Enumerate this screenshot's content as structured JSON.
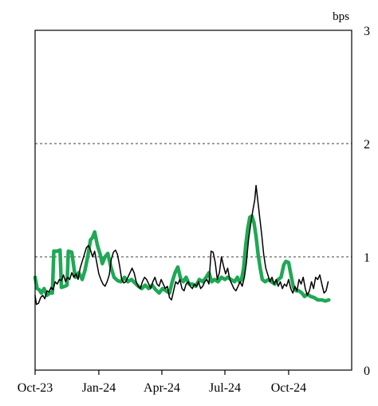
{
  "chart_data": {
    "type": "line",
    "title": "",
    "xlabel": "",
    "ylabel": "bps",
    "ylim": [
      0,
      3
    ],
    "xlim": [
      "2023-10-01",
      "2024-12-31"
    ],
    "x_ticks": [
      "Oct-23",
      "Jan-24",
      "Apr-24",
      "Jul-24",
      "Oct-24"
    ],
    "y_ticks": [
      "0",
      "1",
      "2",
      "3"
    ],
    "grid": "dashed horizontal lines at 1 and 2",
    "legend": "none",
    "series": [
      {
        "color": "#1fa855",
        "values": [
          [
            "2023-10-01",
            0.82
          ],
          [
            "2023-10-04",
            0.72
          ],
          [
            "2023-10-07",
            0.71
          ],
          [
            "2023-10-10",
            0.68
          ],
          [
            "2023-10-14",
            0.72
          ],
          [
            "2023-10-18",
            0.66
          ],
          [
            "2023-10-22",
            0.68
          ],
          [
            "2023-10-26",
            0.68
          ],
          [
            "2023-10-28",
            1.05
          ],
          [
            "2023-11-02",
            1.05
          ],
          [
            "2023-11-06",
            1.06
          ],
          [
            "2023-11-08",
            0.73
          ],
          [
            "2023-11-13",
            0.74
          ],
          [
            "2023-11-16",
            0.75
          ],
          [
            "2023-11-18",
            1.05
          ],
          [
            "2023-11-23",
            1.04
          ],
          [
            "2023-11-28",
            0.82
          ],
          [
            "2023-12-03",
            0.86
          ],
          [
            "2023-12-08",
            0.8
          ],
          [
            "2023-12-12",
            0.88
          ],
          [
            "2023-12-16",
            1.0
          ],
          [
            "2023-12-20",
            1.15
          ],
          [
            "2023-12-23",
            1.17
          ],
          [
            "2023-12-26",
            1.22
          ],
          [
            "2023-12-30",
            1.1
          ],
          [
            "2024-01-03",
            1.02
          ],
          [
            "2024-01-06",
            0.94
          ],
          [
            "2024-01-10",
            1.0
          ],
          [
            "2024-01-14",
            1.03
          ],
          [
            "2024-01-18",
            0.92
          ],
          [
            "2024-01-23",
            0.82
          ],
          [
            "2024-01-28",
            0.79
          ],
          [
            "2024-02-02",
            0.78
          ],
          [
            "2024-02-07",
            0.82
          ],
          [
            "2024-02-12",
            0.78
          ],
          [
            "2024-02-17",
            0.8
          ],
          [
            "2024-02-22",
            0.77
          ],
          [
            "2024-02-27",
            0.74
          ],
          [
            "2024-03-03",
            0.72
          ],
          [
            "2024-03-08",
            0.75
          ],
          [
            "2024-03-13",
            0.72
          ],
          [
            "2024-03-18",
            0.75
          ],
          [
            "2024-03-23",
            0.71
          ],
          [
            "2024-03-28",
            0.68
          ],
          [
            "2024-04-02",
            0.72
          ],
          [
            "2024-04-07",
            0.7
          ],
          [
            "2024-04-12",
            0.68
          ],
          [
            "2024-04-16",
            0.78
          ],
          [
            "2024-04-20",
            0.86
          ],
          [
            "2024-04-24",
            0.91
          ],
          [
            "2024-04-28",
            0.81
          ],
          [
            "2024-05-02",
            0.78
          ],
          [
            "2024-05-06",
            0.82
          ],
          [
            "2024-05-10",
            0.76
          ],
          [
            "2024-05-15",
            0.76
          ],
          [
            "2024-05-20",
            0.74
          ],
          [
            "2024-05-25",
            0.8
          ],
          [
            "2024-05-30",
            0.78
          ],
          [
            "2024-06-04",
            0.82
          ],
          [
            "2024-06-08",
            0.86
          ],
          [
            "2024-06-12",
            0.78
          ],
          [
            "2024-06-16",
            0.8
          ],
          [
            "2024-06-21",
            0.78
          ],
          [
            "2024-06-26",
            0.82
          ],
          [
            "2024-07-01",
            0.8
          ],
          [
            "2024-07-05",
            0.82
          ],
          [
            "2024-07-10",
            0.8
          ],
          [
            "2024-07-15",
            0.78
          ],
          [
            "2024-07-19",
            0.82
          ],
          [
            "2024-07-22",
            0.78
          ],
          [
            "2024-07-25",
            0.8
          ],
          [
            "2024-07-28",
            0.9
          ],
          [
            "2024-07-31",
            1.1
          ],
          [
            "2024-08-03",
            1.25
          ],
          [
            "2024-08-06",
            1.35
          ],
          [
            "2024-08-09",
            1.36
          ],
          [
            "2024-08-12",
            1.3
          ],
          [
            "2024-08-15",
            1.18
          ],
          [
            "2024-08-18",
            1.02
          ],
          [
            "2024-08-21",
            0.9
          ],
          [
            "2024-08-24",
            0.8
          ],
          [
            "2024-08-28",
            0.78
          ],
          [
            "2024-09-02",
            0.8
          ],
          [
            "2024-09-06",
            0.78
          ],
          [
            "2024-09-11",
            0.76
          ],
          [
            "2024-09-16",
            0.8
          ],
          [
            "2024-09-20",
            0.82
          ],
          [
            "2024-09-24",
            0.93
          ],
          [
            "2024-09-27",
            0.96
          ],
          [
            "2024-10-01",
            0.95
          ],
          [
            "2024-10-04",
            0.85
          ],
          [
            "2024-10-08",
            0.73
          ],
          [
            "2024-10-12",
            0.7
          ],
          [
            "2024-10-16",
            0.7
          ],
          [
            "2024-10-20",
            0.68
          ],
          [
            "2024-10-24",
            0.65
          ],
          [
            "2024-10-28",
            0.67
          ],
          [
            "2024-11-02",
            0.65
          ],
          [
            "2024-11-07",
            0.64
          ],
          [
            "2024-11-12",
            0.62
          ],
          [
            "2024-11-18",
            0.62
          ],
          [
            "2024-11-23",
            0.61
          ],
          [
            "2024-11-28",
            0.62
          ]
        ]
      },
      {
        "color": "#000000",
        "values": [
          [
            "2023-10-01",
            0.66
          ],
          [
            "2023-10-03",
            0.58
          ],
          [
            "2023-10-06",
            0.59
          ],
          [
            "2023-10-09",
            0.64
          ],
          [
            "2023-10-12",
            0.66
          ],
          [
            "2023-10-15",
            0.63
          ],
          [
            "2023-10-18",
            0.7
          ],
          [
            "2023-10-21",
            0.69
          ],
          [
            "2023-10-24",
            0.73
          ],
          [
            "2023-10-27",
            0.71
          ],
          [
            "2023-10-30",
            0.78
          ],
          [
            "2023-11-02",
            0.76
          ],
          [
            "2023-11-05",
            0.8
          ],
          [
            "2023-11-08",
            0.79
          ],
          [
            "2023-11-11",
            0.84
          ],
          [
            "2023-11-14",
            0.78
          ],
          [
            "2023-11-17",
            0.82
          ],
          [
            "2023-11-20",
            0.8
          ],
          [
            "2023-11-23",
            0.86
          ],
          [
            "2023-11-26",
            0.82
          ],
          [
            "2023-11-29",
            0.85
          ],
          [
            "2023-12-02",
            0.8
          ],
          [
            "2023-12-05",
            0.9
          ],
          [
            "2023-12-08",
            0.96
          ],
          [
            "2023-12-11",
            1.02
          ],
          [
            "2023-12-14",
            1.08
          ],
          [
            "2023-12-17",
            1.1
          ],
          [
            "2023-12-20",
            1.06
          ],
          [
            "2023-12-23",
            1.0
          ],
          [
            "2023-12-26",
            1.05
          ],
          [
            "2023-12-29",
            0.95
          ],
          [
            "2024-01-01",
            0.85
          ],
          [
            "2024-01-04",
            0.8
          ],
          [
            "2024-01-07",
            0.76
          ],
          [
            "2024-01-10",
            0.74
          ],
          [
            "2024-01-13",
            0.78
          ],
          [
            "2024-01-16",
            0.84
          ],
          [
            "2024-01-19",
            0.98
          ],
          [
            "2024-01-22",
            1.04
          ],
          [
            "2024-01-25",
            1.06
          ],
          [
            "2024-01-28",
            1.02
          ],
          [
            "2024-01-31",
            0.92
          ],
          [
            "2024-02-03",
            0.8
          ],
          [
            "2024-02-06",
            0.77
          ],
          [
            "2024-02-09",
            0.78
          ],
          [
            "2024-02-12",
            0.82
          ],
          [
            "2024-02-15",
            0.86
          ],
          [
            "2024-02-18",
            0.9
          ],
          [
            "2024-02-21",
            0.86
          ],
          [
            "2024-02-24",
            0.78
          ],
          [
            "2024-02-27",
            0.74
          ],
          [
            "2024-03-01",
            0.72
          ],
          [
            "2024-03-04",
            0.78
          ],
          [
            "2024-03-07",
            0.82
          ],
          [
            "2024-03-10",
            0.8
          ],
          [
            "2024-03-13",
            0.76
          ],
          [
            "2024-03-16",
            0.72
          ],
          [
            "2024-03-19",
            0.78
          ],
          [
            "2024-03-22",
            0.82
          ],
          [
            "2024-03-25",
            0.76
          ],
          [
            "2024-03-28",
            0.74
          ],
          [
            "2024-03-31",
            0.8
          ],
          [
            "2024-04-03",
            0.76
          ],
          [
            "2024-04-06",
            0.72
          ],
          [
            "2024-04-09",
            0.74
          ],
          [
            "2024-04-12",
            0.64
          ],
          [
            "2024-04-15",
            0.62
          ],
          [
            "2024-04-18",
            0.7
          ],
          [
            "2024-04-21",
            0.78
          ],
          [
            "2024-04-24",
            0.76
          ],
          [
            "2024-04-27",
            0.8
          ],
          [
            "2024-04-30",
            0.72
          ],
          [
            "2024-05-03",
            0.7
          ],
          [
            "2024-05-06",
            0.76
          ],
          [
            "2024-05-09",
            0.78
          ],
          [
            "2024-05-12",
            0.74
          ],
          [
            "2024-05-15",
            0.72
          ],
          [
            "2024-05-18",
            0.76
          ],
          [
            "2024-05-21",
            0.74
          ],
          [
            "2024-05-24",
            0.78
          ],
          [
            "2024-05-27",
            0.72
          ],
          [
            "2024-05-30",
            0.74
          ],
          [
            "2024-06-02",
            0.78
          ],
          [
            "2024-06-05",
            0.8
          ],
          [
            "2024-06-08",
            0.76
          ],
          [
            "2024-06-11",
            1.05
          ],
          [
            "2024-06-14",
            1.04
          ],
          [
            "2024-06-17",
            0.95
          ],
          [
            "2024-06-20",
            0.8
          ],
          [
            "2024-06-23",
            0.86
          ],
          [
            "2024-06-26",
            1.0
          ],
          [
            "2024-06-29",
            0.92
          ],
          [
            "2024-07-02",
            0.85
          ],
          [
            "2024-07-05",
            0.9
          ],
          [
            "2024-07-08",
            0.8
          ],
          [
            "2024-07-11",
            0.76
          ],
          [
            "2024-07-14",
            0.72
          ],
          [
            "2024-07-17",
            0.7
          ],
          [
            "2024-07-20",
            0.74
          ],
          [
            "2024-07-23",
            0.78
          ],
          [
            "2024-07-26",
            0.74
          ],
          [
            "2024-07-29",
            0.82
          ],
          [
            "2024-08-01",
            0.95
          ],
          [
            "2024-08-04",
            1.15
          ],
          [
            "2024-08-07",
            1.28
          ],
          [
            "2024-08-10",
            1.4
          ],
          [
            "2024-08-13",
            1.5
          ],
          [
            "2024-08-15",
            1.63
          ],
          [
            "2024-08-17",
            1.52
          ],
          [
            "2024-08-20",
            1.36
          ],
          [
            "2024-08-23",
            1.2
          ],
          [
            "2024-08-26",
            1.02
          ],
          [
            "2024-08-29",
            0.9
          ],
          [
            "2024-09-01",
            0.84
          ],
          [
            "2024-09-04",
            0.78
          ],
          [
            "2024-09-07",
            0.82
          ],
          [
            "2024-09-10",
            0.76
          ],
          [
            "2024-09-13",
            0.8
          ],
          [
            "2024-09-16",
            0.74
          ],
          [
            "2024-09-19",
            0.78
          ],
          [
            "2024-09-22",
            0.72
          ],
          [
            "2024-09-25",
            0.76
          ],
          [
            "2024-09-28",
            0.74
          ],
          [
            "2024-10-01",
            0.8
          ],
          [
            "2024-10-04",
            0.72
          ],
          [
            "2024-10-07",
            0.68
          ],
          [
            "2024-10-10",
            0.74
          ],
          [
            "2024-10-13",
            0.7
          ],
          [
            "2024-10-16",
            0.8
          ],
          [
            "2024-10-19",
            0.76
          ],
          [
            "2024-10-22",
            0.82
          ],
          [
            "2024-10-25",
            0.72
          ],
          [
            "2024-10-28",
            0.66
          ],
          [
            "2024-10-31",
            0.7
          ],
          [
            "2024-11-03",
            0.78
          ],
          [
            "2024-11-06",
            0.72
          ],
          [
            "2024-11-09",
            0.82
          ],
          [
            "2024-11-12",
            0.8
          ],
          [
            "2024-11-15",
            0.84
          ],
          [
            "2024-11-18",
            0.76
          ],
          [
            "2024-11-21",
            0.68
          ],
          [
            "2024-11-24",
            0.7
          ],
          [
            "2024-11-27",
            0.78
          ]
        ]
      }
    ]
  }
}
